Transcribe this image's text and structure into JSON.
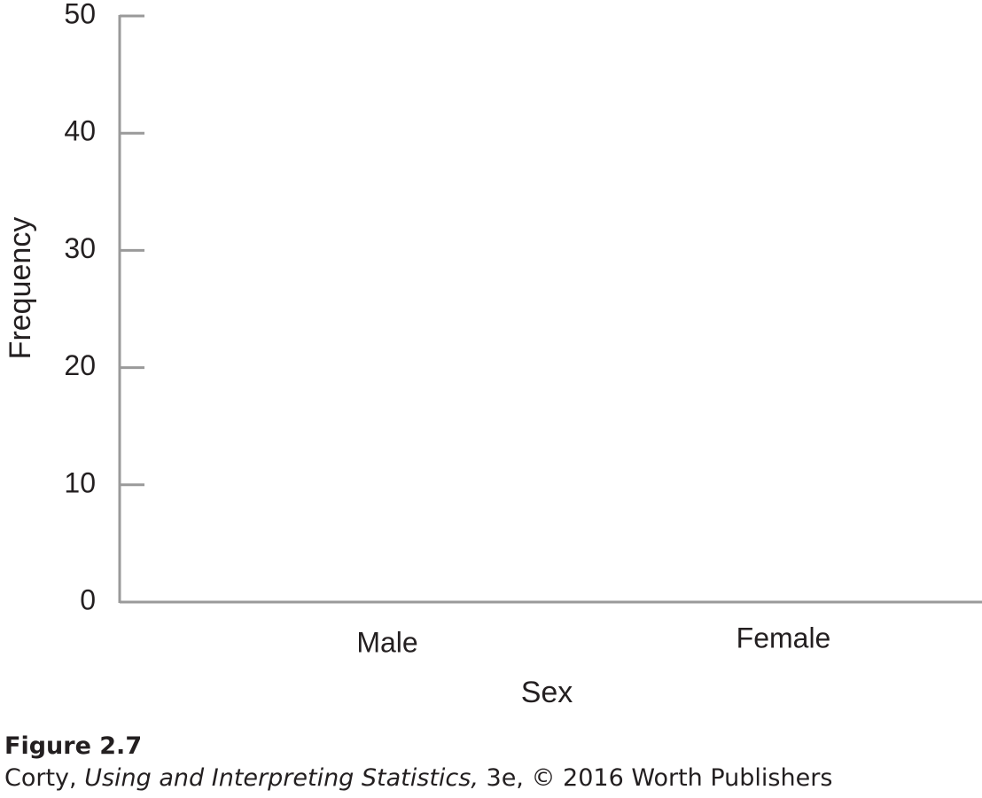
{
  "chart_data": {
    "type": "bar",
    "categories": [
      "Male",
      "Female"
    ],
    "xlabel": "Sex",
    "ylabel": "Frequency",
    "ylim": [
      0,
      50
    ],
    "yticks": [
      0,
      10,
      20,
      30,
      40,
      50
    ]
  },
  "caption": {
    "figure": "Figure 2.7",
    "author": "Corty,",
    "book": "Using and Interpreting Statistics,",
    "rest": "3e, © 2016 Worth Publishers"
  }
}
